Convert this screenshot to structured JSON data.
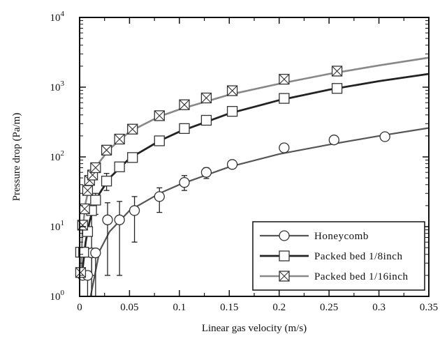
{
  "chart_data": {
    "type": "scatter",
    "title": "",
    "xlabel": "Linear gas velocity (m/s)",
    "ylabel": "Pressure drop (Pa/m)",
    "xlim": [
      0,
      0.35
    ],
    "ylim": [
      1,
      10000
    ],
    "yscale": "log",
    "grid": false,
    "legend_position": "bottom-right",
    "x_ticks": [
      "0",
      "0.05",
      "0.1",
      "0.15",
      "0.2",
      "0.25",
      "0.3",
      "0.35"
    ],
    "series": [
      {
        "name": "Honeycomb",
        "marker": "circle",
        "color": "#555555",
        "points": [
          {
            "x": 0.003,
            "y": 2
          },
          {
            "x": 0.008,
            "y": 2
          },
          {
            "x": 0.012,
            "y": 4.2
          },
          {
            "x": 0.016,
            "y": 4.2
          },
          {
            "x": 0.028,
            "y": 12.5
          },
          {
            "x": 0.04,
            "y": 12.5
          },
          {
            "x": 0.055,
            "y": 17
          },
          {
            "x": 0.08,
            "y": 27
          },
          {
            "x": 0.105,
            "y": 43
          },
          {
            "x": 0.127,
            "y": 60
          },
          {
            "x": 0.153,
            "y": 78
          },
          {
            "x": 0.205,
            "y": 135
          },
          {
            "x": 0.255,
            "y": 175
          },
          {
            "x": 0.306,
            "y": 195
          }
        ],
        "error_bars": [
          {
            "x": 0.008,
            "low": 1,
            "high": 2.3
          },
          {
            "x": 0.012,
            "low": 1,
            "high": 4.5
          },
          {
            "x": 0.016,
            "low": 1,
            "high": 4.5
          },
          {
            "x": 0.028,
            "low": 2,
            "high": 22
          },
          {
            "x": 0.04,
            "low": 2,
            "high": 23
          },
          {
            "x": 0.055,
            "low": 6,
            "high": 27
          },
          {
            "x": 0.08,
            "low": 16,
            "high": 36
          },
          {
            "x": 0.105,
            "low": 33,
            "high": 54
          },
          {
            "x": 0.127,
            "low": 49,
            "high": 70
          }
        ],
        "fit_curve": {
          "x": [
            0.011,
            0.02,
            0.03,
            0.05,
            0.08,
            0.1,
            0.15,
            0.2,
            0.25,
            0.3,
            0.35
          ],
          "y": [
            1.0,
            4.5,
            8.5,
            17,
            30,
            40,
            72,
            110,
            150,
            200,
            260
          ]
        }
      },
      {
        "name": "Packed bed 1/8inch",
        "marker": "square",
        "color": "#222222",
        "points": [
          {
            "x": 0.001,
            "y": 4.3
          },
          {
            "x": 0.004,
            "y": 4.3
          },
          {
            "x": 0.008,
            "y": 8.5
          },
          {
            "x": 0.012,
            "y": 17
          },
          {
            "x": 0.016,
            "y": 24
          },
          {
            "x": 0.027,
            "y": 45
          },
          {
            "x": 0.04,
            "y": 72
          },
          {
            "x": 0.053,
            "y": 98
          },
          {
            "x": 0.08,
            "y": 170
          },
          {
            "x": 0.105,
            "y": 255
          },
          {
            "x": 0.127,
            "y": 335
          },
          {
            "x": 0.153,
            "y": 450
          },
          {
            "x": 0.205,
            "y": 690
          },
          {
            "x": 0.258,
            "y": 960
          }
        ],
        "error_bars": [
          {
            "x": 0.012,
            "low": 2,
            "high": 20
          },
          {
            "x": 0.016,
            "low": 15,
            "high": 30
          },
          {
            "x": 0.027,
            "low": 33,
            "high": 58
          },
          {
            "x": 0.04,
            "low": 64,
            "high": 80
          }
        ],
        "fit_curve": {
          "x": [
            0.003,
            0.006,
            0.01,
            0.015,
            0.02,
            0.03,
            0.05,
            0.08,
            0.1,
            0.15,
            0.2,
            0.25,
            0.3,
            0.35
          ],
          "y": [
            2.5,
            6,
            12,
            21,
            30,
            50,
            95,
            170,
            230,
            420,
            650,
            920,
            1220,
            1550
          ]
        }
      },
      {
        "name": "Packed bed 1/16inch",
        "marker": "crossed-square",
        "color": "#888888",
        "points": [
          {
            "x": 0.001,
            "y": 2.2
          },
          {
            "x": 0.003,
            "y": 10.5
          },
          {
            "x": 0.005,
            "y": 18
          },
          {
            "x": 0.008,
            "y": 33
          },
          {
            "x": 0.01,
            "y": 46
          },
          {
            "x": 0.013,
            "y": 55
          },
          {
            "x": 0.016,
            "y": 70
          },
          {
            "x": 0.027,
            "y": 125
          },
          {
            "x": 0.04,
            "y": 180
          },
          {
            "x": 0.053,
            "y": 250
          },
          {
            "x": 0.08,
            "y": 390
          },
          {
            "x": 0.105,
            "y": 560
          },
          {
            "x": 0.127,
            "y": 700
          },
          {
            "x": 0.153,
            "y": 890
          },
          {
            "x": 0.205,
            "y": 1300
          },
          {
            "x": 0.258,
            "y": 1700
          }
        ],
        "error_bars": [],
        "fit_curve": {
          "x": [
            0.001,
            0.003,
            0.006,
            0.01,
            0.015,
            0.02,
            0.03,
            0.05,
            0.08,
            0.1,
            0.15,
            0.2,
            0.25,
            0.3,
            0.35
          ],
          "y": [
            2,
            9,
            22,
            40,
            62,
            85,
            130,
            230,
            380,
            480,
            780,
            1120,
            1550,
            2050,
            2650
          ]
        }
      }
    ]
  }
}
